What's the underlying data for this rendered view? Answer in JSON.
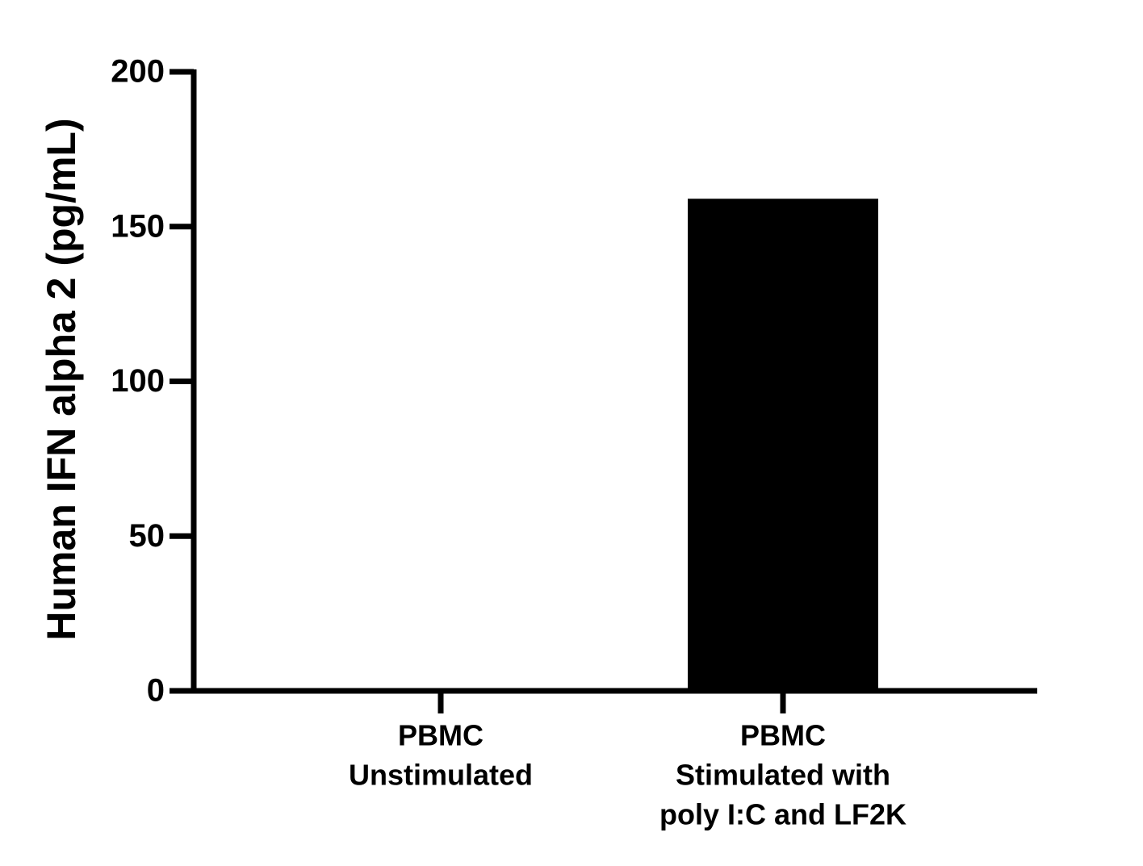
{
  "chart_data": {
    "type": "bar",
    "y_label": "Human IFN alpha 2 (pg/mL)",
    "categories": [
      [
        "PBMC",
        "Unstimulated"
      ],
      [
        "PBMC",
        "Stimulated with",
        "poly I:C and LF2K"
      ]
    ],
    "values": [
      0,
      159
    ],
    "color": "#000000",
    "ylim": [
      0,
      200
    ],
    "yticks": [
      0,
      50,
      100,
      150,
      200
    ],
    "grid": false
  }
}
